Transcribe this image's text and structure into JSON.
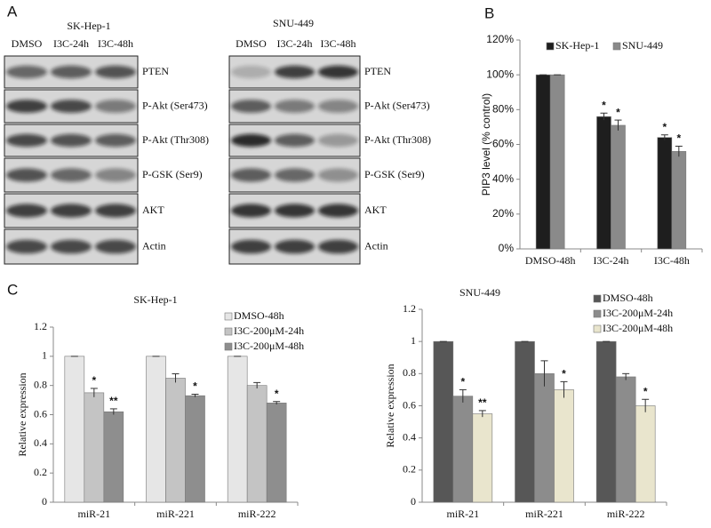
{
  "panel_labels": [
    "A",
    "B",
    "C"
  ],
  "blots": [
    {
      "title": "SK-Hep-1",
      "lanes": [
        "DMSO",
        "I3C-24h",
        "I3C-48h"
      ],
      "rows": [
        "PTEN",
        "P-Akt (Ser473)",
        "P-Akt (Thr308)",
        "P-GSK (Ser9)",
        "AKT",
        "Actin"
      ]
    },
    {
      "title": "SNU-449",
      "lanes": [
        "DMSO",
        "I3C-24h",
        "I3C-48h"
      ],
      "rows": [
        "PTEN",
        "P-Akt (Ser473)",
        "P-Akt (Thr308)",
        "P-GSK (Ser9)",
        "AKT",
        "Actin"
      ]
    }
  ],
  "chart_data": [
    {
      "type": "bar",
      "ylabel": "PIP3 level (% control)",
      "categories": [
        "DMSO-48h",
        "I3C-24h",
        "I3C-48h"
      ],
      "ylim": [
        0,
        120
      ],
      "yticks": [
        {
          "value": 0,
          "label": "0%"
        },
        {
          "value": 20,
          "label": "20%"
        },
        {
          "value": 40,
          "label": "40%"
        },
        {
          "value": 60,
          "label": "60%"
        },
        {
          "value": 80,
          "label": "80%"
        },
        {
          "value": 100,
          "label": "100%"
        },
        {
          "value": 120,
          "label": "120%"
        }
      ],
      "legend": "top",
      "series": [
        {
          "name": "SK-Hep-1",
          "color": "#1e1e1e",
          "values": [
            100,
            76,
            64
          ],
          "errors": [
            0,
            2,
            1.5
          ],
          "significance": [
            null,
            "*",
            "*"
          ]
        },
        {
          "name": "SNU-449",
          "color": "#8a8a8a",
          "values": [
            100,
            71,
            56
          ],
          "errors": [
            0,
            3,
            3
          ],
          "significance": [
            null,
            "*",
            "*"
          ]
        }
      ]
    },
    {
      "type": "bar",
      "title": "SK-Hep-1",
      "ylabel": "Relative expression",
      "categories": [
        "miR-21",
        "miR-221",
        "miR-222"
      ],
      "ylim": [
        0,
        1.2
      ],
      "yticks": [
        0,
        0.2,
        0.4,
        0.6,
        0.8,
        1,
        1.2
      ],
      "legend": "top right",
      "series": [
        {
          "name": "DMSO-48h",
          "color": "#e6e6e6",
          "values": [
            1,
            1,
            1
          ],
          "errors": [
            0,
            0,
            0
          ],
          "significance": [
            null,
            null,
            null
          ]
        },
        {
          "name": "I3C-200μM-24h",
          "color": "#c4c4c4",
          "values": [
            0.75,
            0.85,
            0.8
          ],
          "errors": [
            0.03,
            0.03,
            0.02
          ],
          "significance": [
            "*",
            null,
            null
          ]
        },
        {
          "name": "I3C-200μM-48h",
          "color": "#8e8e8e",
          "values": [
            0.62,
            0.73,
            0.68
          ],
          "errors": [
            0.02,
            0.01,
            0.01
          ],
          "significance": [
            "**",
            "*",
            "*"
          ]
        }
      ]
    },
    {
      "type": "bar",
      "title": "SNU-449",
      "ylabel": "Relative expression",
      "categories": [
        "miR-21",
        "miR-221",
        "miR-222"
      ],
      "ylim": [
        0,
        1.2
      ],
      "yticks": [
        0,
        0.2,
        0.4,
        0.6,
        0.8,
        1,
        1.2
      ],
      "legend": "top right",
      "series": [
        {
          "name": "DMSO-48h",
          "color": "#575757",
          "values": [
            1,
            1,
            1
          ],
          "errors": [
            0,
            0,
            0
          ],
          "significance": [
            null,
            null,
            null
          ]
        },
        {
          "name": "I3C-200μM-24h",
          "color": "#8c8c8c",
          "values": [
            0.66,
            0.8,
            0.78
          ],
          "errors": [
            0.04,
            0.08,
            0.02
          ],
          "significance": [
            "*",
            null,
            null
          ]
        },
        {
          "name": "I3C-200μM-48h",
          "color": "#e9e5cd",
          "values": [
            0.55,
            0.7,
            0.6
          ],
          "errors": [
            0.02,
            0.05,
            0.04
          ],
          "significance": [
            "**",
            "*",
            "*"
          ]
        }
      ]
    }
  ]
}
